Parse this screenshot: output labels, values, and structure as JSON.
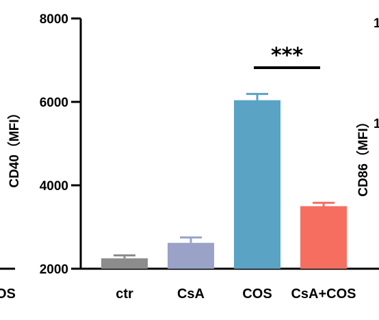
{
  "chart_data": {
    "type": "bar",
    "ylabel": "CD40（MFI）",
    "ylim": [
      2000,
      8000
    ],
    "yticks": [
      2000,
      4000,
      6000,
      8000
    ],
    "grid": false,
    "categories": [
      "ctr",
      "CsA",
      "COS",
      "CsA+COS"
    ],
    "values": [
      2250,
      2620,
      6040,
      3500
    ],
    "errors": [
      70,
      130,
      150,
      80
    ],
    "colors": [
      "#8c8c8c",
      "#9aa2c8",
      "#5aa3c4",
      "#f56e60"
    ],
    "significance": {
      "from": "COS",
      "to": "CsA+COS",
      "label": "***"
    }
  },
  "neighbor_right": {
    "ylabel": "CD86（MFI）",
    "tick_fragments": [
      "1",
      "1"
    ]
  },
  "neighbor_left": {
    "label_fragment": "OS"
  }
}
